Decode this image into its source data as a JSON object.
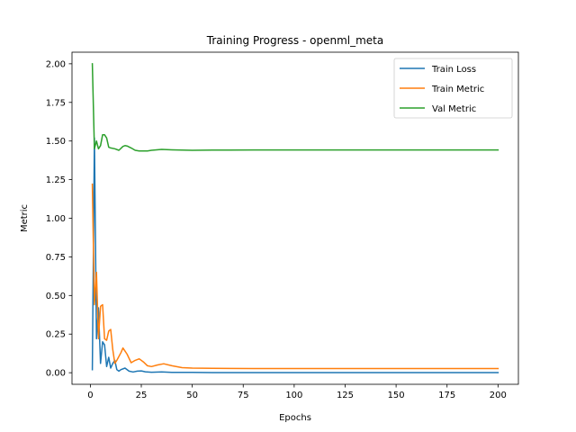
{
  "chart_data": {
    "type": "line",
    "title": "Training Progress - openml_meta",
    "xlabel": "Epochs",
    "ylabel": "Metric",
    "xlim": [
      -9,
      210
    ],
    "ylim": [
      -0.075,
      2.075
    ],
    "xticks": [
      0,
      25,
      50,
      75,
      100,
      125,
      150,
      175,
      200
    ],
    "yticks": [
      0.0,
      0.25,
      0.5,
      0.75,
      1.0,
      1.25,
      1.5,
      1.75,
      2.0
    ],
    "ytick_labels": [
      "0.00",
      "0.25",
      "0.50",
      "0.75",
      "1.00",
      "1.25",
      "1.50",
      "1.75",
      "2.00"
    ],
    "grid": false,
    "legend_position": "top-right",
    "series": [
      {
        "name": "Train Loss",
        "color": "#1f77b4",
        "x": [
          1,
          2,
          3,
          4,
          5,
          6,
          7,
          8,
          9,
          10,
          11,
          12,
          13,
          14,
          15,
          17,
          19,
          21,
          23,
          25,
          27,
          30,
          35,
          40,
          50,
          60,
          80,
          100,
          150,
          200
        ],
        "y": [
          0.02,
          1.52,
          0.22,
          0.42,
          0.06,
          0.2,
          0.18,
          0.04,
          0.1,
          0.03,
          0.06,
          0.08,
          0.02,
          0.01,
          0.02,
          0.03,
          0.01,
          0.005,
          0.01,
          0.012,
          0.006,
          0.003,
          0.005,
          0.002,
          0.002,
          0.001,
          0.001,
          0.001,
          0.001,
          0.001
        ]
      },
      {
        "name": "Train Metric",
        "color": "#ff7f0e",
        "x": [
          1,
          2,
          3,
          4,
          5,
          6,
          7,
          8,
          9,
          10,
          11,
          12,
          13,
          15,
          16,
          17,
          18,
          20,
          22,
          24,
          26,
          28,
          30,
          33,
          36,
          40,
          45,
          50,
          60,
          80,
          100,
          150,
          200
        ],
        "y": [
          1.22,
          0.44,
          0.65,
          0.22,
          0.43,
          0.44,
          0.22,
          0.21,
          0.27,
          0.28,
          0.15,
          0.06,
          0.08,
          0.13,
          0.16,
          0.14,
          0.12,
          0.065,
          0.08,
          0.09,
          0.07,
          0.045,
          0.04,
          0.05,
          0.058,
          0.045,
          0.033,
          0.03,
          0.028,
          0.027,
          0.027,
          0.027,
          0.027
        ]
      },
      {
        "name": "Val Metric",
        "color": "#2ca02c",
        "x": [
          1,
          2,
          3,
          4,
          5,
          6,
          7,
          8,
          9,
          10,
          12,
          14,
          16,
          17,
          18,
          20,
          22,
          24,
          26,
          28,
          30,
          35,
          40,
          50,
          60,
          80,
          100,
          150,
          200
        ],
        "y": [
          2.0,
          1.45,
          1.5,
          1.45,
          1.47,
          1.54,
          1.54,
          1.52,
          1.46,
          1.455,
          1.45,
          1.44,
          1.465,
          1.47,
          1.468,
          1.455,
          1.44,
          1.436,
          1.435,
          1.436,
          1.44,
          1.446,
          1.443,
          1.44,
          1.441,
          1.442,
          1.442,
          1.442,
          1.442
        ]
      }
    ]
  }
}
